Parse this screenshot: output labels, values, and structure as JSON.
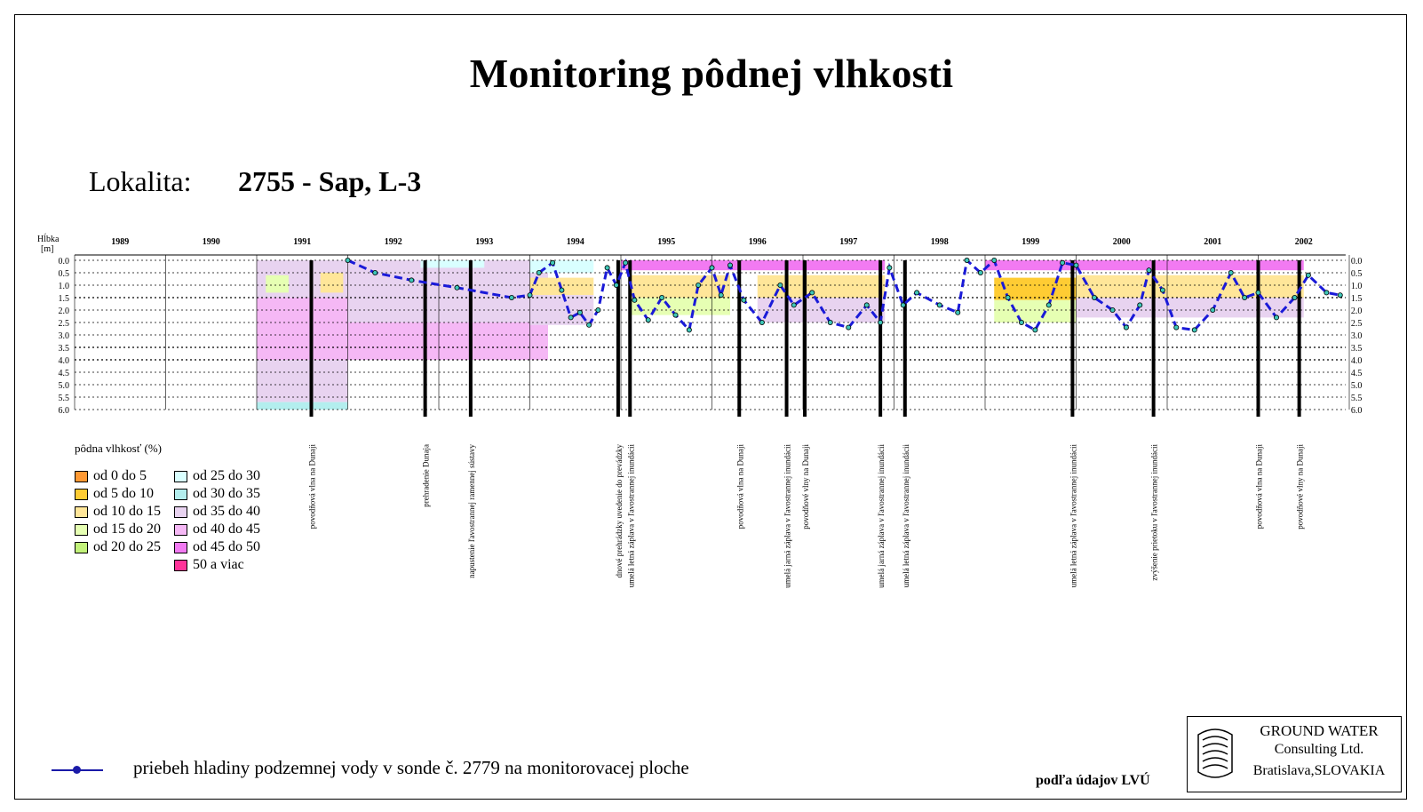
{
  "page": {
    "title": "Monitoring pôdnej vlhkosti",
    "locality_label": "Lokalita:",
    "locality_value": "2755 - Sap, L-3",
    "groundwater_legend": "priebeh hladiny podzemnej vody v sonde č. 2779 na monitorovacej ploche",
    "source": "podľa údajov LVÚ",
    "logo": {
      "line1": "GROUND WATER",
      "line2": "Consulting Ltd.",
      "line3": "Bratislava,SLOVAKIA",
      "icon": "groundwater-logo-icon"
    }
  },
  "legend": {
    "title": "pôdna vlhkosť (%)",
    "items": [
      {
        "label": "od 0 do 5",
        "color": "#ff9933"
      },
      {
        "label": "od 5 do 10",
        "color": "#ffcc33"
      },
      {
        "label": "od 10 do 15",
        "color": "#ffe699"
      },
      {
        "label": "od 15 do 20",
        "color": "#e6ffb3"
      },
      {
        "label": "od 20 do 25",
        "color": "#c2f27a"
      },
      {
        "label": "od 25 do 30",
        "color": "#d9ffff"
      },
      {
        "label": "od 30 do 35",
        "color": "#b3eeee"
      },
      {
        "label": "od 35 do 40",
        "color": "#e8d3f0"
      },
      {
        "label": "od 40 do 45",
        "color": "#f5b8f5"
      },
      {
        "label": "od 45 do 50",
        "color": "#f27af2"
      },
      {
        "label": "50 a viac",
        "color": "#ff3399"
      }
    ]
  },
  "chart_data": {
    "type": "heatmap",
    "title": "Monitoring pôdnej vlhkosti",
    "ylabel": "Hĺbka [m]",
    "years": [
      "1989",
      "1990",
      "1991",
      "1992",
      "1993",
      "1994",
      "1995",
      "1996",
      "1997",
      "1998",
      "1999",
      "2000",
      "2001",
      "2002"
    ],
    "x_range": [
      1989.0,
      2002.96
    ],
    "depth_ticks": [
      "0.0",
      "0.5",
      "1.0",
      "1.5",
      "2.0",
      "2.5",
      "3.0",
      "3.5",
      "4.0",
      "4.5",
      "5.0",
      "5.5",
      "6.0"
    ],
    "depth_range": [
      0,
      6
    ],
    "moisture_blocks": [
      {
        "t0": 1991.0,
        "t1": 1992.0,
        "d0": 0.0,
        "d1": 1.5,
        "color": "#e8d3f0"
      },
      {
        "t0": 1991.0,
        "t1": 1992.0,
        "d0": 1.5,
        "d1": 4.0,
        "color": "#f5b8f5"
      },
      {
        "t0": 1991.0,
        "t1": 1992.0,
        "d0": 4.0,
        "d1": 5.7,
        "color": "#e8d3f0"
      },
      {
        "t0": 1991.0,
        "t1": 1992.0,
        "d0": 5.7,
        "d1": 6.0,
        "color": "#b3eeee"
      },
      {
        "t0": 1991.1,
        "t1": 1991.35,
        "d0": 0.6,
        "d1": 1.3,
        "color": "#e6ffb3"
      },
      {
        "t0": 1991.7,
        "t1": 1991.95,
        "d0": 0.5,
        "d1": 1.3,
        "color": "#ffe699"
      },
      {
        "t0": 1992.0,
        "t1": 1994.2,
        "d0": 0.0,
        "d1": 1.5,
        "color": "#e8d3f0"
      },
      {
        "t0": 1992.0,
        "t1": 1994.2,
        "d0": 1.5,
        "d1": 2.5,
        "color": "#e8d3f0"
      },
      {
        "t0": 1992.0,
        "t1": 1994.2,
        "d0": 2.5,
        "d1": 4.0,
        "color": "#f5b8f5"
      },
      {
        "t0": 1992.8,
        "t1": 1993.5,
        "d0": 0.0,
        "d1": 0.3,
        "color": "#d9ffff"
      },
      {
        "t0": 1994.0,
        "t1": 1994.7,
        "d0": 0.0,
        "d1": 0.5,
        "color": "#d9ffff"
      },
      {
        "t0": 1994.0,
        "t1": 1994.7,
        "d0": 0.7,
        "d1": 1.4,
        "color": "#ffe699"
      },
      {
        "t0": 1994.0,
        "t1": 1994.7,
        "d0": 1.4,
        "d1": 2.6,
        "color": "#e8d3f0"
      },
      {
        "t0": 1995.0,
        "t1": 1996.2,
        "d0": 0.0,
        "d1": 0.4,
        "color": "#f27af2"
      },
      {
        "t0": 1995.1,
        "t1": 1996.2,
        "d0": 0.6,
        "d1": 1.5,
        "color": "#ffe699"
      },
      {
        "t0": 1995.1,
        "t1": 1996.2,
        "d0": 1.5,
        "d1": 2.2,
        "color": "#e6ffb3"
      },
      {
        "t0": 1996.2,
        "t1": 1997.9,
        "d0": 0.0,
        "d1": 0.4,
        "color": "#f27af2"
      },
      {
        "t0": 1996.5,
        "t1": 1997.9,
        "d0": 0.6,
        "d1": 1.5,
        "color": "#ffe699"
      },
      {
        "t0": 1996.5,
        "t1": 1997.9,
        "d0": 1.5,
        "d1": 2.5,
        "color": "#e8d3f0"
      },
      {
        "t0": 1999.0,
        "t1": 2000.0,
        "d0": 0.0,
        "d1": 0.4,
        "color": "#f27af2"
      },
      {
        "t0": 1999.1,
        "t1": 2000.0,
        "d0": 0.7,
        "d1": 1.6,
        "color": "#ffcc33"
      },
      {
        "t0": 1999.1,
        "t1": 2000.0,
        "d0": 1.6,
        "d1": 2.5,
        "color": "#e6ffb3"
      },
      {
        "t0": 2000.0,
        "t1": 2002.5,
        "d0": 0.0,
        "d1": 0.4,
        "color": "#f27af2"
      },
      {
        "t0": 2000.0,
        "t1": 2002.5,
        "d0": 0.6,
        "d1": 1.5,
        "color": "#ffe699"
      },
      {
        "t0": 2000.0,
        "t1": 2002.5,
        "d0": 1.5,
        "d1": 2.3,
        "color": "#e8d3f0"
      }
    ],
    "events": [
      {
        "t": 1991.6,
        "label": "povodňová vlna na Dunaji"
      },
      {
        "t": 1992.85,
        "label": "prehradenie Dunaja"
      },
      {
        "t": 1993.35,
        "label": "napustenie ľavostrannej ramennej sústavy"
      },
      {
        "t": 1994.97,
        "label": "dnové prehrádzky uvedenie do prevádzky"
      },
      {
        "t": 1995.1,
        "label": "umelá letná záplava v ľavostrannej inundácii"
      },
      {
        "t": 1996.3,
        "label": "povodňová vlna na Dunaji"
      },
      {
        "t": 1996.82,
        "label": "umelá jarná záplava v ľavostrannej inundácii"
      },
      {
        "t": 1997.02,
        "label": "povodňové vlny na Dunaji"
      },
      {
        "t": 1997.85,
        "label": "umelá jarná záplava v ľavostrannej inundácii"
      },
      {
        "t": 1998.12,
        "label": "umelá letná záplava v ľavostrannej inundácii"
      },
      {
        "t": 1999.96,
        "label": "umelá letná záplava v ľavostrannej inundácii"
      },
      {
        "t": 2000.85,
        "label": "zvýšenie prietoku v ľavostrannej inundácii"
      },
      {
        "t": 2002.0,
        "label": "povodňová vlna na Dunaji"
      },
      {
        "t": 2002.45,
        "label": "povodňové vlny na Dunaji"
      }
    ],
    "groundwater": {
      "name": "priebeh hladiny podzemnej vody v sonde č. 2779 na monitorovacej ploche",
      "points": [
        [
          1992.0,
          0.0
        ],
        [
          1992.3,
          0.5
        ],
        [
          1992.7,
          0.8
        ],
        [
          1993.2,
          1.1
        ],
        [
          1993.8,
          1.5
        ],
        [
          1994.0,
          1.4
        ],
        [
          1994.1,
          0.5
        ],
        [
          1994.25,
          0.1
        ],
        [
          1994.35,
          1.2
        ],
        [
          1994.45,
          2.3
        ],
        [
          1994.55,
          2.1
        ],
        [
          1994.65,
          2.6
        ],
        [
          1994.75,
          2.0
        ],
        [
          1994.85,
          0.3
        ],
        [
          1994.95,
          1.0
        ],
        [
          1995.05,
          0.1
        ],
        [
          1995.15,
          1.6
        ],
        [
          1995.3,
          2.4
        ],
        [
          1995.45,
          1.5
        ],
        [
          1995.6,
          2.2
        ],
        [
          1995.75,
          2.8
        ],
        [
          1995.85,
          1.0
        ],
        [
          1996.0,
          0.3
        ],
        [
          1996.1,
          1.4
        ],
        [
          1996.2,
          0.2
        ],
        [
          1996.35,
          1.6
        ],
        [
          1996.55,
          2.5
        ],
        [
          1996.75,
          1.0
        ],
        [
          1996.9,
          1.8
        ],
        [
          1997.1,
          1.3
        ],
        [
          1997.3,
          2.5
        ],
        [
          1997.5,
          2.7
        ],
        [
          1997.7,
          1.8
        ],
        [
          1997.85,
          2.5
        ],
        [
          1997.95,
          0.3
        ],
        [
          1998.1,
          1.8
        ],
        [
          1998.25,
          1.3
        ],
        [
          1998.5,
          1.8
        ],
        [
          1998.7,
          2.1
        ],
        [
          1998.8,
          0.0
        ],
        [
          1998.95,
          0.5
        ],
        [
          1999.1,
          0.0
        ],
        [
          1999.25,
          1.5
        ],
        [
          1999.4,
          2.5
        ],
        [
          1999.55,
          2.8
        ],
        [
          1999.7,
          1.8
        ],
        [
          1999.85,
          0.1
        ],
        [
          2000.0,
          0.2
        ],
        [
          2000.2,
          1.5
        ],
        [
          2000.4,
          2.0
        ],
        [
          2000.55,
          2.7
        ],
        [
          2000.7,
          1.8
        ],
        [
          2000.8,
          0.4
        ],
        [
          2000.95,
          1.2
        ],
        [
          2001.1,
          2.7
        ],
        [
          2001.3,
          2.8
        ],
        [
          2001.5,
          2.0
        ],
        [
          2001.7,
          0.5
        ],
        [
          2001.85,
          1.5
        ],
        [
          2002.0,
          1.3
        ],
        [
          2002.2,
          2.3
        ],
        [
          2002.4,
          1.5
        ],
        [
          2002.55,
          0.6
        ],
        [
          2002.75,
          1.3
        ],
        [
          2002.9,
          1.4
        ]
      ]
    }
  }
}
